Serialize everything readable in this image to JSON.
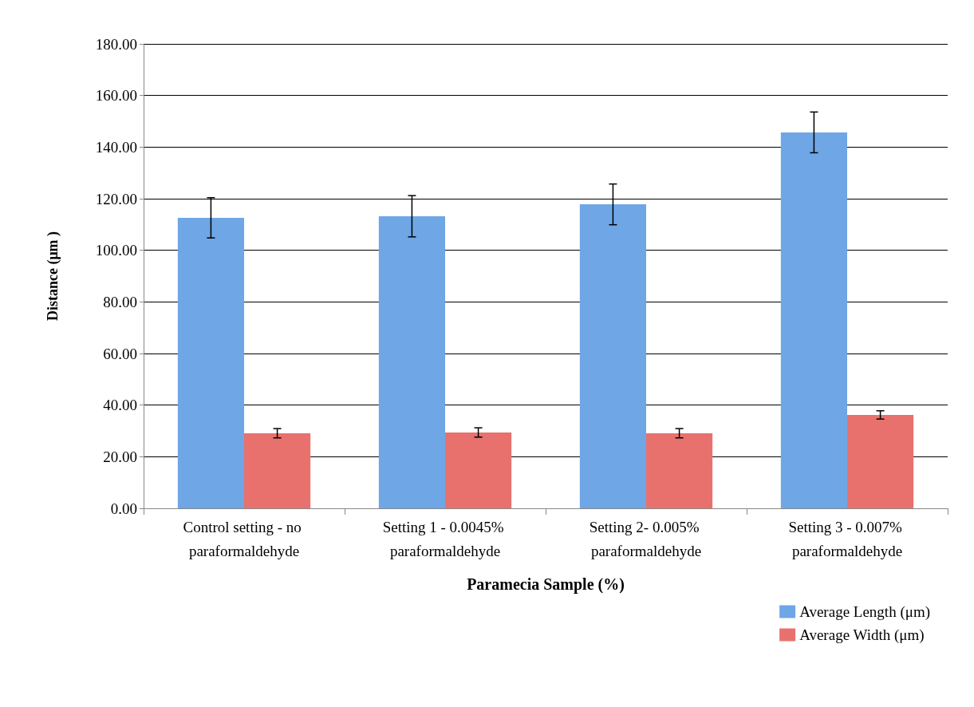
{
  "chart_data": {
    "type": "bar",
    "xlabel": "Paramecia Sample (%)",
    "ylabel": "Distance (μm )",
    "categories": [
      "Control setting - no paraformaldehyde",
      "Setting 1 - 0.0045% paraformaldehyde",
      "Setting 2- 0.005% paraformaldehyde",
      "Setting 3 - 0.007% paraformaldehyde"
    ],
    "series": [
      {
        "name": "Average Length (μm)",
        "color": "#6ea6e6",
        "values": [
          112.6,
          113.2,
          117.8,
          145.7
        ],
        "errors": [
          7.8,
          8,
          7.9,
          7.9
        ]
      },
      {
        "name": "Average Width (μm)",
        "color": "#e8716e",
        "values": [
          29.1,
          29.4,
          29.1,
          36.2
        ],
        "errors": [
          1.8,
          1.8,
          1.8,
          1.6
        ]
      }
    ],
    "ylim": [
      0,
      180
    ],
    "yticks": [
      {
        "value": 0,
        "label": "0.00"
      },
      {
        "value": 20,
        "label": "20.00"
      },
      {
        "value": 40,
        "label": "40.00"
      },
      {
        "value": 60,
        "label": "60.00"
      },
      {
        "value": 80,
        "label": "80.00"
      },
      {
        "value": 100,
        "label": "100.00"
      },
      {
        "value": 120,
        "label": "120.00"
      },
      {
        "value": 140,
        "label": "140.00"
      },
      {
        "value": 160,
        "label": "160.00"
      },
      {
        "value": 180,
        "label": "180.00"
      }
    ],
    "grid": "y",
    "legend": "bottom right"
  }
}
